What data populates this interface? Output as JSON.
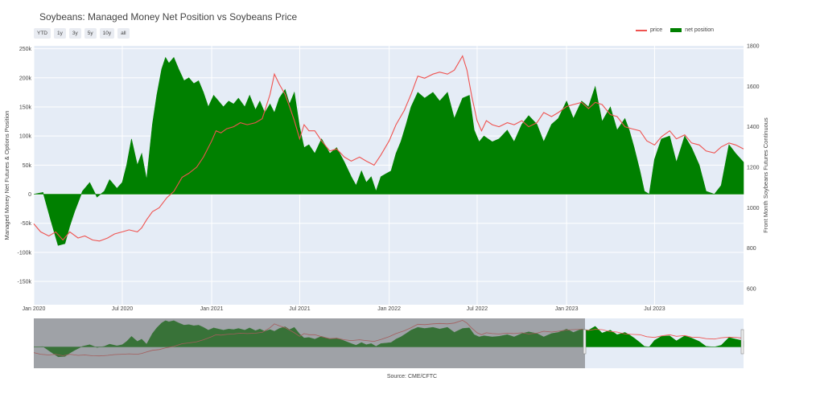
{
  "title": "Soybeans: Managed Money Net Position vs Soybeans Price",
  "range_buttons": [
    "YTD",
    "1y",
    "3y",
    "5y",
    "10y",
    "all"
  ],
  "legend": {
    "price_label": "price",
    "net_label": "net position"
  },
  "source": "Source: CME/CFTC",
  "colors": {
    "price": "#ef5350",
    "net": "#008000",
    "plot_bg": "#e5ecf6",
    "grid": "#ffffff"
  },
  "chart_data": {
    "type": "area",
    "xlim": [
      "2020-01-01",
      "2023-12-31"
    ],
    "x_ticks": [
      {
        "date": "2020-01-01",
        "label": "Jan 2020"
      },
      {
        "date": "2020-07-01",
        "label": "Jul 2020"
      },
      {
        "date": "2021-01-01",
        "label": "Jan 2021"
      },
      {
        "date": "2021-07-01",
        "label": "Jul 2021"
      },
      {
        "date": "2022-01-01",
        "label": "Jan 2022"
      },
      {
        "date": "2022-07-01",
        "label": "Jul 2022"
      },
      {
        "date": "2023-01-01",
        "label": "Jan 2023"
      },
      {
        "date": "2023-07-01",
        "label": "Jul 2023"
      }
    ],
    "y_left": {
      "label": "Managed Money Net Futures & Options Position",
      "lim": [
        -190000,
        255000
      ],
      "ticks": [
        {
          "v": -150000,
          "label": "-150k"
        },
        {
          "v": -100000,
          "label": "-100k"
        },
        {
          "v": -50000,
          "label": "-50k"
        },
        {
          "v": 0,
          "label": "0"
        },
        {
          "v": 50000,
          "label": "50k"
        },
        {
          "v": 100000,
          "label": "100k"
        },
        {
          "v": 150000,
          "label": "150k"
        },
        {
          "v": 200000,
          "label": "200k"
        },
        {
          "v": 250000,
          "label": "250k"
        }
      ]
    },
    "y_right": {
      "label": "Front Month Soybeans Futures Continuous",
      "lim": [
        520,
        1800
      ],
      "ticks": [
        {
          "v": 600,
          "label": "600"
        },
        {
          "v": 800,
          "label": "800"
        },
        {
          "v": 1000,
          "label": "1000"
        },
        {
          "v": 1200,
          "label": "1200"
        },
        {
          "v": 1400,
          "label": "1400"
        },
        {
          "v": 1600,
          "label": "1600"
        },
        {
          "v": 1800,
          "label": "1800"
        }
      ]
    },
    "series": [
      {
        "name": "net position",
        "axis": "left",
        "x": [
          "2020-01-01",
          "2020-01-20",
          "2020-02-05",
          "2020-02-20",
          "2020-03-05",
          "2020-03-15",
          "2020-03-25",
          "2020-04-10",
          "2020-04-25",
          "2020-05-10",
          "2020-05-25",
          "2020-06-05",
          "2020-06-20",
          "2020-07-01",
          "2020-07-10",
          "2020-07-20",
          "2020-08-01",
          "2020-08-10",
          "2020-08-20",
          "2020-09-01",
          "2020-09-10",
          "2020-09-20",
          "2020-09-28",
          "2020-10-05",
          "2020-10-15",
          "2020-10-25",
          "2020-11-05",
          "2020-11-15",
          "2020-11-25",
          "2020-12-05",
          "2020-12-15",
          "2020-12-25",
          "2021-01-05",
          "2021-01-15",
          "2021-01-25",
          "2021-02-05",
          "2021-02-15",
          "2021-02-25",
          "2021-03-10",
          "2021-03-20",
          "2021-04-01",
          "2021-04-10",
          "2021-04-20",
          "2021-05-01",
          "2021-05-10",
          "2021-05-20",
          "2021-06-01",
          "2021-06-10",
          "2021-06-20",
          "2021-07-01",
          "2021-07-10",
          "2021-07-20",
          "2021-08-01",
          "2021-08-15",
          "2021-09-01",
          "2021-09-15",
          "2021-10-01",
          "2021-10-15",
          "2021-10-25",
          "2021-11-05",
          "2021-11-15",
          "2021-11-25",
          "2021-12-05",
          "2021-12-15",
          "2021-12-25",
          "2022-01-05",
          "2022-01-15",
          "2022-01-25",
          "2022-02-05",
          "2022-02-15",
          "2022-03-01",
          "2022-03-15",
          "2022-04-01",
          "2022-04-15",
          "2022-05-01",
          "2022-05-15",
          "2022-06-01",
          "2022-06-15",
          "2022-06-25",
          "2022-07-05",
          "2022-07-15",
          "2022-08-01",
          "2022-08-15",
          "2022-09-01",
          "2022-09-15",
          "2022-10-01",
          "2022-10-15",
          "2022-11-01",
          "2022-11-15",
          "2022-12-01",
          "2022-12-15",
          "2023-01-01",
          "2023-01-15",
          "2023-02-01",
          "2023-02-15",
          "2023-03-01",
          "2023-03-15",
          "2023-04-01",
          "2023-04-15",
          "2023-05-01",
          "2023-05-10",
          "2023-05-20",
          "2023-06-01",
          "2023-06-10",
          "2023-06-20",
          "2023-07-01",
          "2023-07-15",
          "2023-08-01",
          "2023-08-15",
          "2023-09-01",
          "2023-09-15",
          "2023-10-01",
          "2023-10-15",
          "2023-11-01",
          "2023-11-15",
          "2023-12-01",
          "2023-12-15",
          "2023-12-31"
        ],
        "values": [
          0,
          3000,
          -45000,
          -88000,
          -85000,
          -55000,
          -30000,
          5000,
          20000,
          -5000,
          5000,
          25000,
          10000,
          20000,
          50000,
          95000,
          50000,
          70000,
          25000,
          120000,
          170000,
          215000,
          235000,
          225000,
          235000,
          215000,
          195000,
          200000,
          190000,
          195000,
          175000,
          150000,
          170000,
          160000,
          150000,
          160000,
          155000,
          165000,
          150000,
          170000,
          145000,
          160000,
          140000,
          155000,
          140000,
          165000,
          180000,
          155000,
          175000,
          115000,
          80000,
          85000,
          70000,
          95000,
          70000,
          80000,
          55000,
          30000,
          15000,
          40000,
          20000,
          30000,
          5000,
          30000,
          35000,
          40000,
          70000,
          90000,
          120000,
          150000,
          175000,
          165000,
          175000,
          160000,
          175000,
          130000,
          165000,
          170000,
          110000,
          90000,
          100000,
          90000,
          95000,
          110000,
          90000,
          120000,
          135000,
          120000,
          90000,
          120000,
          130000,
          160000,
          130000,
          160000,
          150000,
          185000,
          125000,
          150000,
          110000,
          130000,
          110000,
          80000,
          40000,
          5000,
          0,
          60000,
          95000,
          100000,
          55000,
          100000,
          80000,
          50000,
          5000,
          0,
          15000,
          85000,
          70000,
          55000
        ]
      },
      {
        "name": "price",
        "axis": "right",
        "x": [
          "2020-01-01",
          "2020-01-15",
          "2020-02-01",
          "2020-02-15",
          "2020-03-01",
          "2020-03-15",
          "2020-04-01",
          "2020-04-15",
          "2020-05-01",
          "2020-05-15",
          "2020-06-01",
          "2020-06-15",
          "2020-07-01",
          "2020-07-15",
          "2020-08-01",
          "2020-08-10",
          "2020-08-20",
          "2020-09-01",
          "2020-09-15",
          "2020-10-01",
          "2020-10-15",
          "2020-11-01",
          "2020-11-15",
          "2020-12-01",
          "2020-12-15",
          "2021-01-01",
          "2021-01-10",
          "2021-01-20",
          "2021-02-01",
          "2021-02-15",
          "2021-03-01",
          "2021-03-15",
          "2021-04-01",
          "2021-04-15",
          "2021-05-01",
          "2021-05-10",
          "2021-05-20",
          "2021-06-01",
          "2021-06-10",
          "2021-06-20",
          "2021-07-01",
          "2021-07-10",
          "2021-07-20",
          "2021-08-01",
          "2021-08-15",
          "2021-09-01",
          "2021-09-15",
          "2021-10-01",
          "2021-10-15",
          "2021-11-01",
          "2021-11-15",
          "2021-12-01",
          "2021-12-15",
          "2022-01-01",
          "2022-01-15",
          "2022-02-01",
          "2022-02-15",
          "2022-03-01",
          "2022-03-15",
          "2022-04-01",
          "2022-04-15",
          "2022-05-01",
          "2022-05-15",
          "2022-06-01",
          "2022-06-10",
          "2022-06-20",
          "2022-07-01",
          "2022-07-10",
          "2022-07-20",
          "2022-08-01",
          "2022-08-15",
          "2022-09-01",
          "2022-09-15",
          "2022-10-01",
          "2022-10-15",
          "2022-11-01",
          "2022-11-15",
          "2022-12-01",
          "2022-12-15",
          "2023-01-01",
          "2023-01-15",
          "2023-02-01",
          "2023-02-15",
          "2023-03-01",
          "2023-03-15",
          "2023-04-01",
          "2023-04-15",
          "2023-05-01",
          "2023-05-15",
          "2023-06-01",
          "2023-06-15",
          "2023-07-01",
          "2023-07-15",
          "2023-08-01",
          "2023-08-15",
          "2023-09-01",
          "2023-09-15",
          "2023-10-01",
          "2023-10-15",
          "2023-11-01",
          "2023-11-15",
          "2023-12-01",
          "2023-12-15",
          "2023-12-31"
        ],
        "values": [
          920,
          880,
          860,
          880,
          840,
          880,
          850,
          860,
          840,
          835,
          850,
          870,
          880,
          890,
          880,
          900,
          940,
          980,
          1000,
          1050,
          1080,
          1150,
          1170,
          1200,
          1250,
          1330,
          1380,
          1370,
          1390,
          1400,
          1420,
          1410,
          1420,
          1440,
          1560,
          1660,
          1610,
          1560,
          1500,
          1430,
          1340,
          1410,
          1380,
          1380,
          1330,
          1280,
          1290,
          1250,
          1230,
          1250,
          1230,
          1210,
          1260,
          1330,
          1410,
          1480,
          1560,
          1650,
          1640,
          1660,
          1670,
          1660,
          1680,
          1750,
          1680,
          1550,
          1430,
          1380,
          1430,
          1410,
          1400,
          1420,
          1410,
          1430,
          1400,
          1420,
          1470,
          1450,
          1470,
          1500,
          1510,
          1520,
          1490,
          1520,
          1510,
          1460,
          1450,
          1400,
          1390,
          1380,
          1330,
          1310,
          1350,
          1380,
          1340,
          1360,
          1320,
          1310,
          1280,
          1270,
          1300,
          1320,
          1310,
          1290
        ]
      }
    ],
    "rangeslider": true
  }
}
